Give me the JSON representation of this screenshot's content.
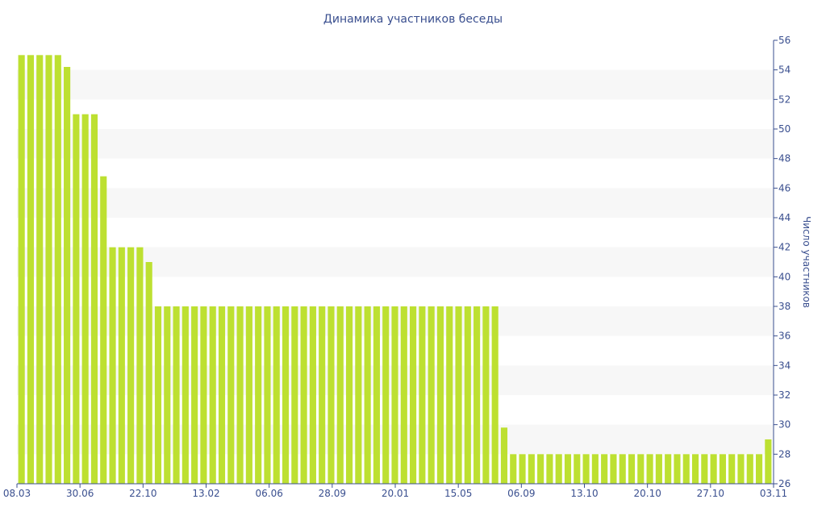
{
  "chart_data": {
    "type": "bar",
    "title": "Динамика участников беседы",
    "xlabel": "",
    "ylabel": "Число участников",
    "ylim": [
      26,
      56
    ],
    "ytick_step": 2,
    "y_axis_position": "right",
    "grid": "alternating horizontal bands",
    "legend": "none",
    "xtick_labels": [
      "08.03",
      "30.06",
      "22.10",
      "13.02",
      "06.06",
      "28.09",
      "20.01",
      "15.05",
      "06.09",
      "13.10",
      "20.10",
      "27.10",
      "03.11"
    ],
    "values": [
      55,
      55,
      55,
      55,
      55,
      54.2,
      51,
      51,
      51,
      46.8,
      42,
      42,
      42,
      42,
      41,
      38,
      38,
      38,
      38,
      38,
      38,
      38,
      38,
      38,
      38,
      38,
      38,
      38,
      38,
      38,
      38,
      38,
      38,
      38,
      38,
      38,
      38,
      38,
      38,
      38,
      38,
      38,
      38,
      38,
      38,
      38,
      38,
      38,
      38,
      38,
      38,
      38,
      38,
      29.8,
      28,
      28,
      28,
      28,
      28,
      28,
      28,
      28,
      28,
      28,
      28,
      28,
      28,
      28,
      28,
      28,
      28,
      28,
      28,
      28,
      28,
      28,
      28,
      28,
      28,
      28,
      28,
      28,
      29
    ]
  },
  "colors": {
    "bar": "#bde031",
    "band": "#f7f7f7",
    "axis": "#3a4f8f",
    "text": "#3a4f8f"
  }
}
